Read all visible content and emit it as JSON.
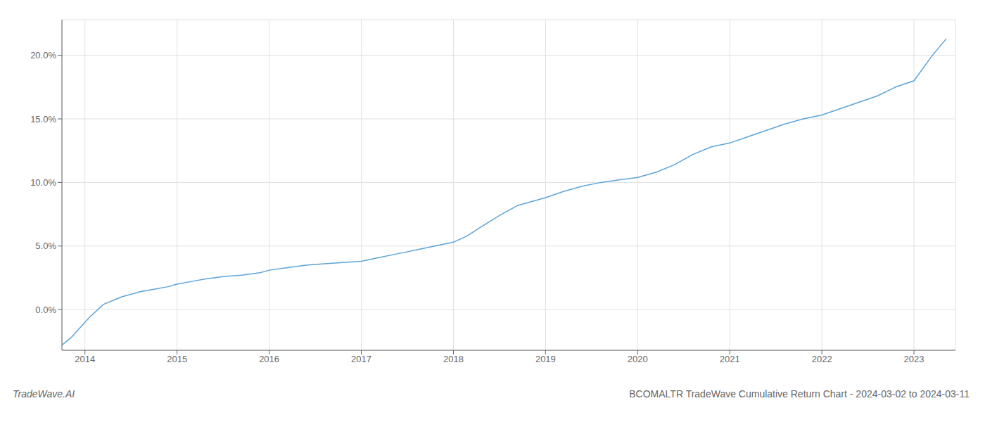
{
  "chart_data": {
    "type": "line",
    "title": "BCOMALTR TradeWave Cumulative Return Chart - 2024-03-02 to 2024-03-11",
    "annotations": [
      "TradeWave.AI"
    ],
    "color": "#5ba3d9",
    "grid": true,
    "xlim": [
      2013.75,
      2023.45
    ],
    "ylim": [
      -0.032,
      0.228
    ],
    "xticks": [
      2014,
      2015,
      2016,
      2017,
      2018,
      2019,
      2020,
      2021,
      2022,
      2023
    ],
    "yticks": [
      {
        "value": 0.0,
        "label": "0.0%"
      },
      {
        "value": 0.05,
        "label": "5.0%"
      },
      {
        "value": 0.1,
        "label": "10.0%"
      },
      {
        "value": 0.15,
        "label": "15.0%"
      },
      {
        "value": 0.2,
        "label": "20.0%"
      }
    ],
    "x": [
      2013.75,
      2013.85,
      2013.95,
      2014.05,
      2014.2,
      2014.4,
      2014.6,
      2014.75,
      2014.9,
      2015.0,
      2015.15,
      2015.3,
      2015.5,
      2015.7,
      2015.9,
      2016.0,
      2016.2,
      2016.4,
      2016.6,
      2016.8,
      2017.0,
      2017.2,
      2017.4,
      2017.6,
      2017.8,
      2018.0,
      2018.15,
      2018.3,
      2018.5,
      2018.7,
      2018.9,
      2019.0,
      2019.2,
      2019.4,
      2019.6,
      2019.8,
      2020.0,
      2020.2,
      2020.4,
      2020.6,
      2020.8,
      2021.0,
      2021.2,
      2021.4,
      2021.6,
      2021.8,
      2022.0,
      2022.2,
      2022.4,
      2022.6,
      2022.8,
      2023.0,
      2023.2,
      2023.35
    ],
    "values": [
      -0.028,
      -0.022,
      -0.014,
      -0.006,
      0.004,
      0.01,
      0.014,
      0.016,
      0.018,
      0.02,
      0.022,
      0.024,
      0.026,
      0.027,
      0.029,
      0.031,
      0.033,
      0.035,
      0.036,
      0.037,
      0.038,
      0.041,
      0.044,
      0.047,
      0.05,
      0.053,
      0.058,
      0.065,
      0.074,
      0.082,
      0.086,
      0.088,
      0.093,
      0.097,
      0.1,
      0.102,
      0.104,
      0.108,
      0.114,
      0.122,
      0.128,
      0.131,
      0.136,
      0.141,
      0.146,
      0.15,
      0.153,
      0.158,
      0.163,
      0.168,
      0.175,
      0.18,
      0.2,
      0.213
    ]
  }
}
